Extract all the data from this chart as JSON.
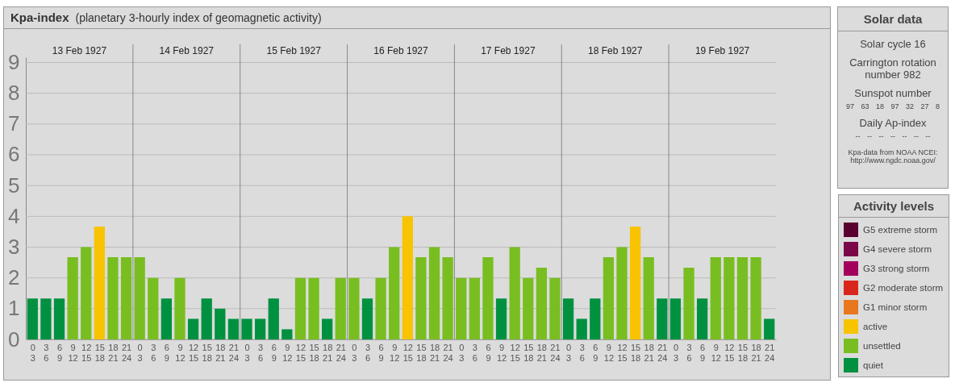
{
  "chart_data": [
    {
      "type": "bar",
      "title": "Kpa-index",
      "subtitle": "(planetary 3-hourly index of geomagnetic activity)",
      "legend_title": "Activity levels",
      "legend": "right",
      "grid": "y",
      "categories": [
        "0\n3",
        "3\n6",
        "6\n9",
        "9\n12",
        "12\n15",
        "15\n18",
        "18\n21",
        "21\n24",
        "0\n3",
        "3\n6",
        "6\n9",
        "9\n12",
        "12\n15",
        "15\n18",
        "18\n21",
        "21\n24",
        "0\n3",
        "3\n6",
        "6\n9",
        "9\n12",
        "12\n15",
        "15\n18",
        "18\n21",
        "21\n24",
        "0\n3",
        "3\n6",
        "6\n9",
        "9\n12",
        "12\n15",
        "15\n18",
        "18\n21",
        "21\n24",
        "0\n3",
        "3\n6",
        "6\n9",
        "9\n12",
        "12\n15",
        "15\n18",
        "18\n21",
        "21\n24",
        "0\n3",
        "3\n6",
        "6\n9",
        "9\n12",
        "12\n15",
        "15\n18",
        "18\n21",
        "21\n24",
        "0\n3",
        "3\n6",
        "6\n9",
        "9\n12",
        "12\n15",
        "15\n18",
        "18\n21",
        "21\n24"
      ],
      "annotations": [
        "13 Feb 1927",
        "14 Feb 1927",
        "15 Feb 1927",
        "16 Feb 1927",
        "17 Feb 1927",
        "18 Feb 1927",
        "19 Feb 1927"
      ],
      "ylim": [
        0,
        9.17
      ],
      "yticks": [
        0,
        1,
        2,
        3,
        4,
        5,
        6,
        7,
        8,
        9
      ],
      "series": [
        {
          "name": "G5 extreme storm",
          "color": "#5a0030",
          "values": [
            null,
            null,
            null,
            null,
            null,
            null,
            null,
            null,
            null,
            null,
            null,
            null,
            null,
            null,
            null,
            null,
            null,
            null,
            null,
            null,
            null,
            null,
            null,
            null,
            null,
            null,
            null,
            null,
            null,
            null,
            null,
            null,
            null,
            null,
            null,
            null,
            null,
            null,
            null,
            null,
            null,
            null,
            null,
            null,
            null,
            null,
            null,
            null,
            null,
            null,
            null,
            null,
            null,
            null,
            null,
            null
          ]
        },
        {
          "name": "G4 severe storm",
          "color": "#7a0848",
          "values": [
            null,
            null,
            null,
            null,
            null,
            null,
            null,
            null,
            null,
            null,
            null,
            null,
            null,
            null,
            null,
            null,
            null,
            null,
            null,
            null,
            null,
            null,
            null,
            null,
            null,
            null,
            null,
            null,
            null,
            null,
            null,
            null,
            null,
            null,
            null,
            null,
            null,
            null,
            null,
            null,
            null,
            null,
            null,
            null,
            null,
            null,
            null,
            null,
            null,
            null,
            null,
            null,
            null,
            null,
            null,
            null
          ]
        },
        {
          "name": "G3 strong storm",
          "color": "#a3005c",
          "values": [
            null,
            null,
            null,
            null,
            null,
            null,
            null,
            null,
            null,
            null,
            null,
            null,
            null,
            null,
            null,
            null,
            null,
            null,
            null,
            null,
            null,
            null,
            null,
            null,
            null,
            null,
            null,
            null,
            null,
            null,
            null,
            null,
            null,
            null,
            null,
            null,
            null,
            null,
            null,
            null,
            null,
            null,
            null,
            null,
            null,
            null,
            null,
            null,
            null,
            null,
            null,
            null,
            null,
            null,
            null,
            null
          ]
        },
        {
          "name": "G2 moderate storm",
          "color": "#d9261c",
          "values": [
            null,
            null,
            null,
            null,
            null,
            null,
            null,
            null,
            null,
            null,
            null,
            null,
            null,
            null,
            null,
            null,
            null,
            null,
            null,
            null,
            null,
            null,
            null,
            null,
            null,
            null,
            null,
            null,
            null,
            null,
            null,
            null,
            null,
            null,
            null,
            null,
            null,
            null,
            null,
            null,
            null,
            null,
            null,
            null,
            null,
            null,
            null,
            null,
            null,
            null,
            null,
            null,
            null,
            null,
            null,
            null
          ]
        },
        {
          "name": "G1 minor storm",
          "color": "#e8771e",
          "values": [
            null,
            null,
            null,
            null,
            null,
            null,
            null,
            null,
            null,
            null,
            null,
            null,
            null,
            null,
            null,
            null,
            null,
            null,
            null,
            null,
            null,
            null,
            null,
            null,
            null,
            null,
            null,
            null,
            null,
            null,
            null,
            null,
            null,
            null,
            null,
            null,
            null,
            null,
            null,
            null,
            null,
            null,
            null,
            null,
            null,
            null,
            null,
            null,
            null,
            null,
            null,
            null,
            null,
            null,
            null,
            null
          ]
        },
        {
          "name": "active",
          "color": "#f8c300",
          "values": [
            null,
            null,
            null,
            null,
            null,
            3.67,
            null,
            null,
            null,
            null,
            null,
            null,
            null,
            null,
            null,
            null,
            null,
            null,
            null,
            null,
            null,
            null,
            null,
            null,
            null,
            null,
            null,
            null,
            4,
            null,
            null,
            null,
            null,
            null,
            null,
            null,
            null,
            null,
            null,
            null,
            null,
            null,
            null,
            null,
            null,
            3.67,
            null,
            null,
            null,
            null,
            null,
            null,
            null,
            null,
            null,
            null
          ]
        },
        {
          "name": "unsettled",
          "color": "#78be21",
          "values": [
            null,
            null,
            null,
            2.67,
            3,
            null,
            2.67,
            2.67,
            2.67,
            2,
            null,
            2,
            null,
            null,
            null,
            null,
            null,
            null,
            null,
            null,
            2,
            2,
            null,
            2,
            2,
            null,
            2,
            3,
            null,
            2.67,
            3,
            2.67,
            2,
            2,
            2.67,
            null,
            3,
            2,
            2.33,
            2,
            null,
            null,
            null,
            2.67,
            3,
            null,
            2.67,
            null,
            null,
            2.33,
            null,
            2.67,
            2.67,
            2.67,
            2.67,
            null
          ]
        },
        {
          "name": "quiet",
          "color": "#009140",
          "values": [
            1.33,
            1.33,
            1.33,
            null,
            null,
            null,
            null,
            null,
            null,
            null,
            1.33,
            null,
            0.67,
            1.33,
            1,
            0.67,
            0.67,
            0.67,
            1.33,
            0.33,
            null,
            null,
            0.67,
            null,
            null,
            1.33,
            null,
            null,
            null,
            null,
            null,
            null,
            null,
            null,
            null,
            1.33,
            null,
            null,
            null,
            null,
            1.33,
            0.67,
            1.33,
            null,
            null,
            null,
            null,
            1.33,
            1.33,
            null,
            1.33,
            null,
            null,
            null,
            null,
            0.67
          ]
        }
      ]
    },
    {
      "type": "other",
      "title": "Solar data",
      "annotations": [
        "Solar cycle 16",
        "Carrington rotation number 982",
        "Sunspot number",
        "97 63 18 97 32 27 8",
        "Daily Ap-index",
        "-- -- -- -- -- -- --",
        "Kpa-data from NOAA NCEI:",
        "http://www.ngdc.noaa.gov/"
      ]
    }
  ]
}
